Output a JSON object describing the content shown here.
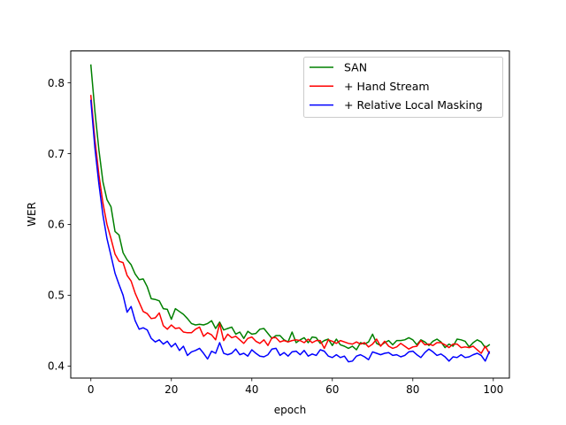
{
  "chart_data": {
    "type": "line",
    "title": "",
    "xlabel": "epoch",
    "ylabel": "WER",
    "xlim": [
      -5,
      104
    ],
    "ylim": [
      0.383,
      0.845
    ],
    "xticks": [
      0,
      20,
      40,
      60,
      80,
      100
    ],
    "yticks": [
      0.4,
      0.5,
      0.6,
      0.7,
      0.8
    ],
    "xtick_labels": [
      "0",
      "20",
      "40",
      "60",
      "80",
      "100"
    ],
    "ytick_labels": [
      "0.4",
      "0.5",
      "0.6",
      "0.7",
      "0.8"
    ],
    "grid": false,
    "legend_position": "top-right",
    "x": [
      0,
      1,
      2,
      3,
      4,
      5,
      6,
      7,
      8,
      9,
      10,
      11,
      12,
      13,
      14,
      15,
      16,
      17,
      18,
      19,
      20,
      21,
      22,
      23,
      24,
      25,
      26,
      27,
      28,
      29,
      30,
      31,
      32,
      33,
      34,
      35,
      36,
      37,
      38,
      39,
      40,
      41,
      42,
      43,
      44,
      45,
      46,
      47,
      48,
      49,
      50,
      51,
      52,
      53,
      54,
      55,
      56,
      57,
      58,
      59,
      60,
      61,
      62,
      63,
      64,
      65,
      66,
      67,
      68,
      69,
      70,
      71,
      72,
      73,
      74,
      75,
      76,
      77,
      78,
      79,
      80,
      81,
      82,
      83,
      84,
      85,
      86,
      87,
      88,
      89,
      90,
      91,
      92,
      93,
      94,
      95,
      96,
      97,
      98,
      99
    ],
    "series": [
      {
        "name": "SAN",
        "color": "#008000",
        "values": [
          0.825,
          0.76,
          0.705,
          0.66,
          0.635,
          0.625,
          0.59,
          0.585,
          0.56,
          0.55,
          0.543,
          0.53,
          0.522,
          0.523,
          0.512,
          0.495,
          0.494,
          0.492,
          0.481,
          0.48,
          0.466,
          0.481,
          0.477,
          0.473,
          0.467,
          0.46,
          0.458,
          0.459,
          0.458,
          0.46,
          0.464,
          0.453,
          0.462,
          0.451,
          0.453,
          0.455,
          0.445,
          0.448,
          0.439,
          0.449,
          0.445,
          0.446,
          0.452,
          0.453,
          0.446,
          0.439,
          0.443,
          0.443,
          0.437,
          0.434,
          0.448,
          0.433,
          0.437,
          0.44,
          0.433,
          0.441,
          0.44,
          0.432,
          0.436,
          0.438,
          0.429,
          0.438,
          0.43,
          0.428,
          0.425,
          0.428,
          0.423,
          0.433,
          0.431,
          0.434,
          0.445,
          0.432,
          0.429,
          0.433,
          0.436,
          0.43,
          0.436,
          0.436,
          0.437,
          0.44,
          0.437,
          0.43,
          0.437,
          0.434,
          0.429,
          0.435,
          0.438,
          0.434,
          0.426,
          0.431,
          0.428,
          0.438,
          0.437,
          0.435,
          0.427,
          0.433,
          0.437,
          0.434,
          0.426,
          0.43
        ]
      },
      {
        "name": "+ Hand Stream",
        "color": "#ff0000",
        "values": [
          0.782,
          0.72,
          0.67,
          0.63,
          0.6,
          0.58,
          0.558,
          0.548,
          0.546,
          0.528,
          0.52,
          0.503,
          0.49,
          0.477,
          0.474,
          0.467,
          0.468,
          0.475,
          0.457,
          0.452,
          0.458,
          0.453,
          0.454,
          0.448,
          0.447,
          0.447,
          0.452,
          0.455,
          0.442,
          0.447,
          0.444,
          0.437,
          0.46,
          0.436,
          0.445,
          0.44,
          0.442,
          0.437,
          0.432,
          0.439,
          0.441,
          0.435,
          0.432,
          0.437,
          0.429,
          0.44,
          0.44,
          0.434,
          0.436,
          0.434,
          0.436,
          0.437,
          0.436,
          0.433,
          0.438,
          0.433,
          0.436,
          0.436,
          0.425,
          0.437,
          0.435,
          0.432,
          0.436,
          0.434,
          0.432,
          0.431,
          0.434,
          0.431,
          0.433,
          0.427,
          0.431,
          0.438,
          0.428,
          0.435,
          0.428,
          0.425,
          0.427,
          0.432,
          0.428,
          0.424,
          0.427,
          0.428,
          0.436,
          0.43,
          0.431,
          0.429,
          0.433,
          0.433,
          0.43,
          0.426,
          0.431,
          0.431,
          0.426,
          0.427,
          0.426,
          0.428,
          0.423,
          0.418,
          0.428,
          0.418
        ]
      },
      {
        "name": "+ Relative Local Masking",
        "color": "#0000ff",
        "values": [
          0.775,
          0.708,
          0.657,
          0.613,
          0.58,
          0.556,
          0.531,
          0.515,
          0.5,
          0.476,
          0.484,
          0.464,
          0.452,
          0.454,
          0.451,
          0.439,
          0.434,
          0.437,
          0.431,
          0.435,
          0.427,
          0.432,
          0.422,
          0.428,
          0.415,
          0.42,
          0.422,
          0.425,
          0.418,
          0.41,
          0.421,
          0.418,
          0.433,
          0.418,
          0.416,
          0.418,
          0.424,
          0.416,
          0.418,
          0.414,
          0.423,
          0.418,
          0.414,
          0.413,
          0.416,
          0.424,
          0.425,
          0.415,
          0.419,
          0.414,
          0.42,
          0.421,
          0.416,
          0.422,
          0.414,
          0.417,
          0.415,
          0.423,
          0.421,
          0.414,
          0.412,
          0.416,
          0.412,
          0.414,
          0.406,
          0.407,
          0.414,
          0.416,
          0.413,
          0.409,
          0.42,
          0.418,
          0.416,
          0.418,
          0.419,
          0.415,
          0.416,
          0.413,
          0.415,
          0.42,
          0.421,
          0.416,
          0.412,
          0.419,
          0.424,
          0.42,
          0.415,
          0.417,
          0.413,
          0.407,
          0.413,
          0.412,
          0.416,
          0.412,
          0.413,
          0.416,
          0.418,
          0.415,
          0.407,
          0.42
        ]
      }
    ]
  }
}
